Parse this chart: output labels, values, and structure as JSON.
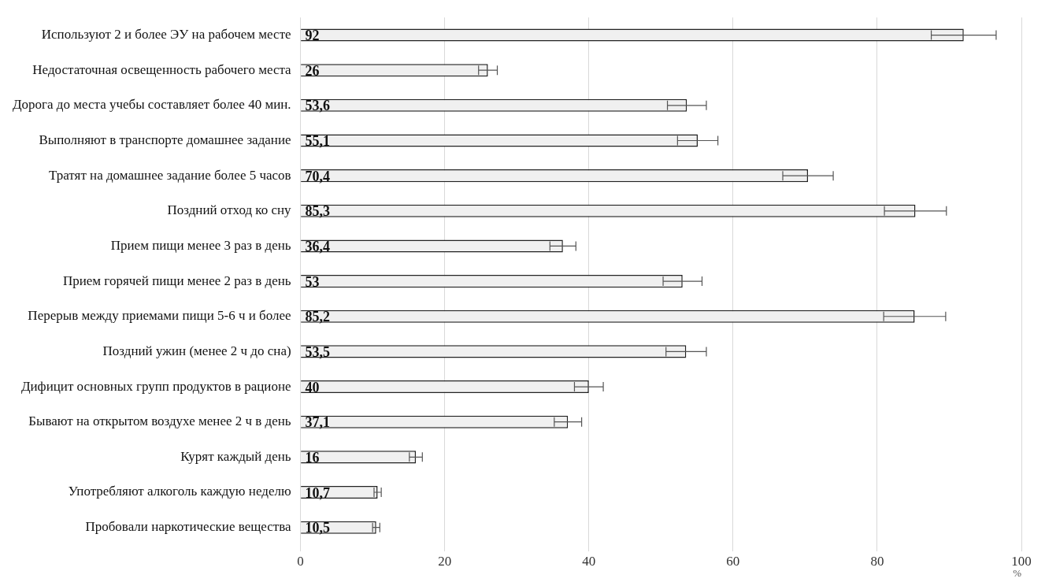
{
  "chart_data": {
    "type": "bar",
    "orientation": "horizontal",
    "xlabel": "%",
    "categories": [
      "Используют 2 и более ЭУ на рабочем месте",
      "Недостаточная освещенность рабочего места",
      "Дорога до места учебы составляет более 40 мин.",
      "Выполняют в транспорте домашнее задание",
      "Тратят на домашнее задание более 5 часов",
      "Поздний отход ко сну",
      "Прием пищи менее 3 раз в день",
      "Прием горячей пищи менее 2 раз в день",
      "Перерыв между приемами пищи 5-6 ч и более",
      "Поздний ужин (менее 2 ч до сна)",
      "Дифицит основных групп продуктов в рационе",
      "Бывают на открытом воздухе менее 2 ч в день",
      "Курят каждый день",
      "Употребляют алкоголь каждую неделю",
      "Пробовали наркотические вещества"
    ],
    "values": [
      92,
      26,
      53.6,
      55.1,
      70.4,
      85.3,
      36.4,
      53,
      85.2,
      53.5,
      40,
      37.1,
      16,
      10.7,
      10.5
    ],
    "value_labels": [
      "92",
      "26",
      "53,6",
      "55,1",
      "70,4",
      "85,3",
      "36,4",
      "53",
      "85,2",
      "53,5",
      "40",
      "37,1",
      "16",
      "10,7",
      "10,5"
    ],
    "errors": [
      4.5,
      1.3,
      2.7,
      2.8,
      3.5,
      4.3,
      1.8,
      2.7,
      4.3,
      2.8,
      2,
      1.9,
      0.9,
      0.5,
      0.5
    ],
    "color": "#f0f0f0",
    "xlim": [
      0,
      100
    ],
    "xticks": [
      0,
      20,
      40,
      60,
      80,
      100
    ],
    "grid": "x",
    "legend": false
  }
}
